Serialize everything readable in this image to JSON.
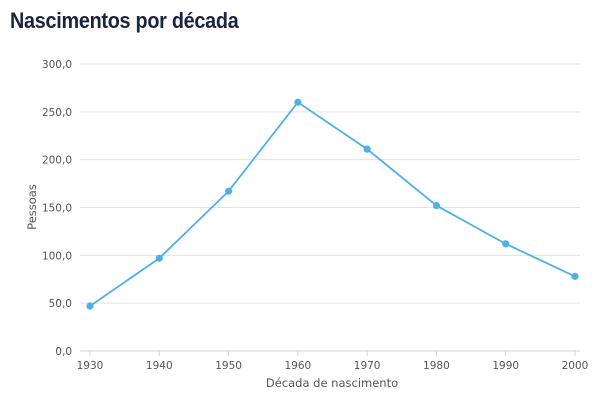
{
  "chart_data": {
    "type": "line",
    "title": "Nascimentos por década",
    "xlabel": "Década de nascimento",
    "ylabel": "Pessoas",
    "categories": [
      "1930",
      "1940",
      "1950",
      "1960",
      "1970",
      "1980",
      "1990",
      "2000"
    ],
    "series": [
      {
        "name": "Pessoas",
        "values": [
          47,
          97,
          167,
          260,
          211,
          152,
          112,
          78
        ]
      }
    ],
    "yticks": [
      "0,0",
      "50,0",
      "100,0",
      "150,0",
      "200,0",
      "250,0",
      "300,0"
    ],
    "ylim": [
      0,
      300
    ],
    "grid": true,
    "legend": "none",
    "line_color": "#4fb0e8"
  }
}
